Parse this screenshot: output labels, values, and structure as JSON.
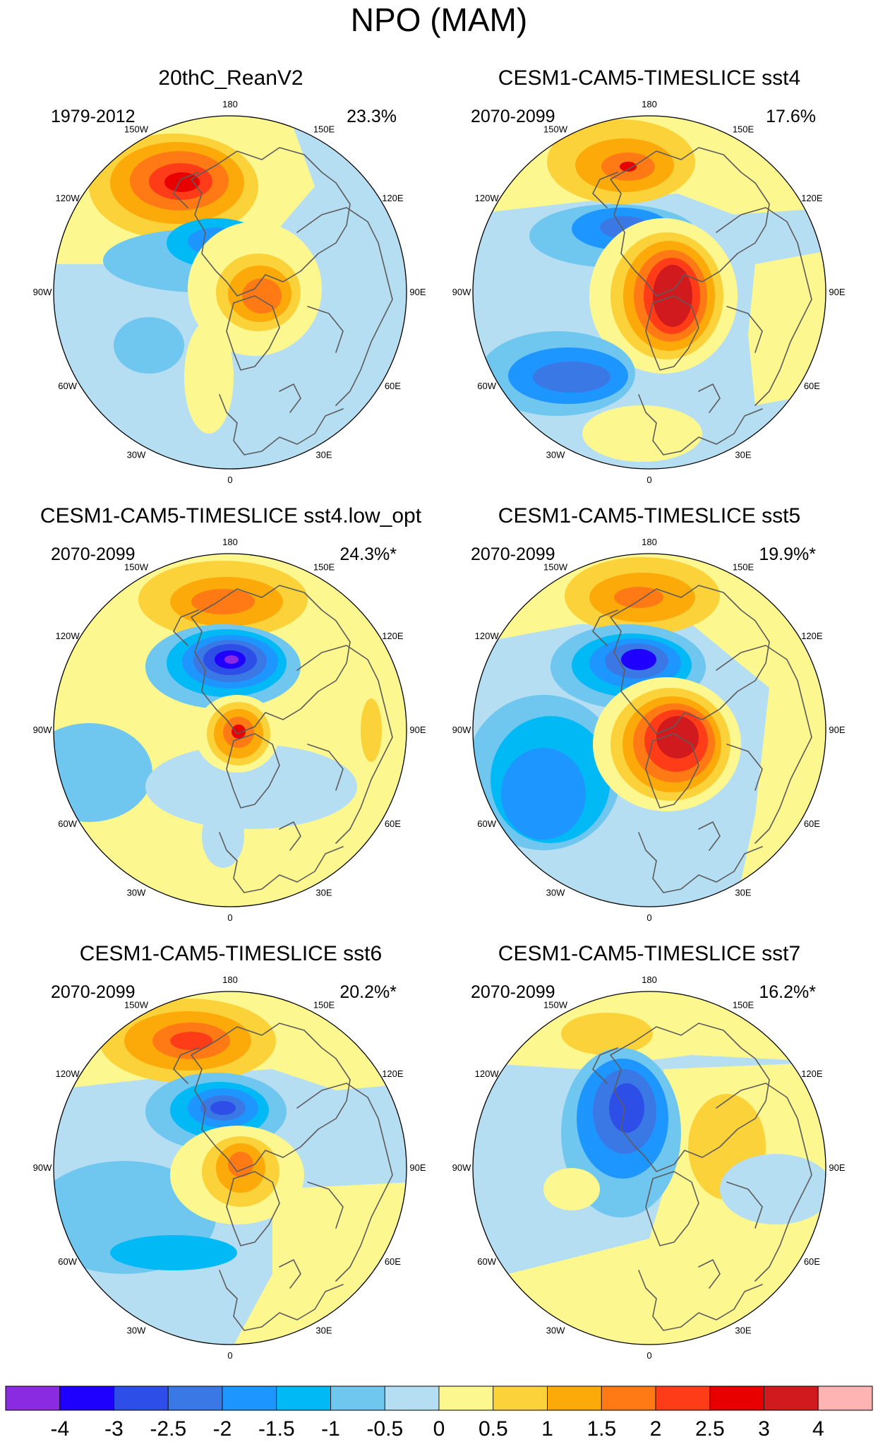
{
  "figure": {
    "title": "NPO (MAM)"
  },
  "lon_labels": [
    "180",
    "150E",
    "120E",
    "90E",
    "60E",
    "30E",
    "0",
    "30W",
    "60W",
    "90W",
    "120W",
    "150W"
  ],
  "colorbar": {
    "levels": [
      "-4",
      "-3",
      "-2.5",
      "-2",
      "-1.5",
      "-1",
      "-0.5",
      "0",
      "0.5",
      "1",
      "1.5",
      "2",
      "2.5",
      "3",
      "4"
    ],
    "colors": [
      "#8a2be2",
      "#1f00ff",
      "#2e4ee8",
      "#3a78e6",
      "#1e96ff",
      "#00b9f5",
      "#6fc6ef",
      "#b5def3",
      "#fdf78f",
      "#fcd23a",
      "#fca90a",
      "#ff7a14",
      "#ff3c18",
      "#e80000",
      "#d11a1e",
      "#ffb4b4"
    ]
  },
  "panels": [
    {
      "title": "20thC_ReanV2",
      "period": "1979-2012",
      "variance": "23.3%"
    },
    {
      "title": "CESM1-CAM5-TIMESLICE sst4",
      "period": "2070-2099",
      "variance": "17.6%"
    },
    {
      "title": "CESM1-CAM5-TIMESLICE sst4.low_opt",
      "period": "2070-2099",
      "variance": "24.3%*"
    },
    {
      "title": "CESM1-CAM5-TIMESLICE sst5",
      "period": "2070-2099",
      "variance": "19.9%*"
    },
    {
      "title": "CESM1-CAM5-TIMESLICE sst6",
      "period": "2070-2099",
      "variance": "20.2%*"
    },
    {
      "title": "CESM1-CAM5-TIMESLICE sst7",
      "period": "2070-2099",
      "variance": "16.2%*"
    }
  ]
}
